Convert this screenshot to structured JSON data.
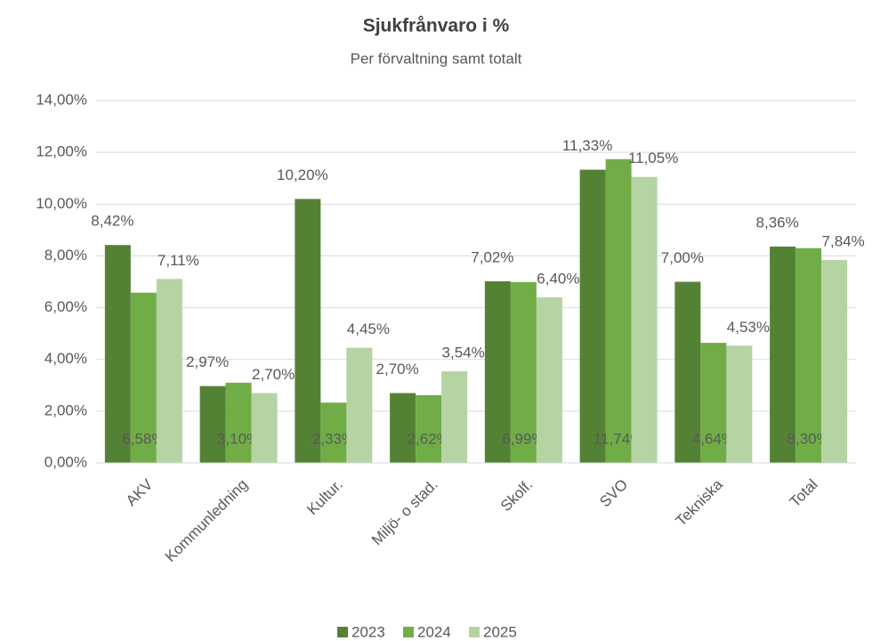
{
  "chart_data": {
    "type": "bar",
    "title": "Sjukfrånvaro i %",
    "subtitle": "Per förvaltning samt totalt",
    "categories": [
      "AKV",
      "Kommunledning",
      "Kultur.",
      "Miljö- o stad.",
      "Skolf.",
      "SVO",
      "Tekniska",
      "Total"
    ],
    "series": [
      {
        "name": "2023",
        "color": "#548235",
        "values": [
          8.42,
          2.97,
          10.2,
          2.7,
          7.02,
          11.33,
          7.0,
          8.36
        ],
        "value_labels": [
          "8,42%",
          "2,97%",
          "10,20%",
          "2,70%",
          "7,02%",
          "11,33%",
          "7,00%",
          "8,36%"
        ]
      },
      {
        "name": "2024",
        "color": "#70ad47",
        "values": [
          6.58,
          3.1,
          2.33,
          2.62,
          6.99,
          11.74,
          4.64,
          8.3
        ],
        "value_labels": [
          "6,58%",
          "3,10%",
          "2,33%",
          "2,62%",
          "6,99%",
          "11,74%",
          "4,64%",
          "8,30%"
        ]
      },
      {
        "name": "2025",
        "color": "#b5d3a3",
        "values": [
          7.11,
          2.7,
          4.45,
          3.54,
          6.4,
          11.05,
          4.53,
          7.84
        ],
        "value_labels": [
          "7,11%",
          "2,70%",
          "4,45%",
          "3,54%",
          "6,40%",
          "11,05%",
          "4,53%",
          "7,84%"
        ]
      }
    ],
    "ylim": [
      0,
      14
    ],
    "yticks": [
      {
        "value": 0,
        "label": "0,00%"
      },
      {
        "value": 2,
        "label": "2,00%"
      },
      {
        "value": 4,
        "label": "4,00%"
      },
      {
        "value": 6,
        "label": "6,00%"
      },
      {
        "value": 8,
        "label": "8,00%"
      },
      {
        "value": 10,
        "label": "10,00%"
      },
      {
        "value": 12,
        "label": "12,00%"
      },
      {
        "value": 14,
        "label": "14,00%"
      }
    ],
    "grid": true,
    "legend": "bottom"
  }
}
